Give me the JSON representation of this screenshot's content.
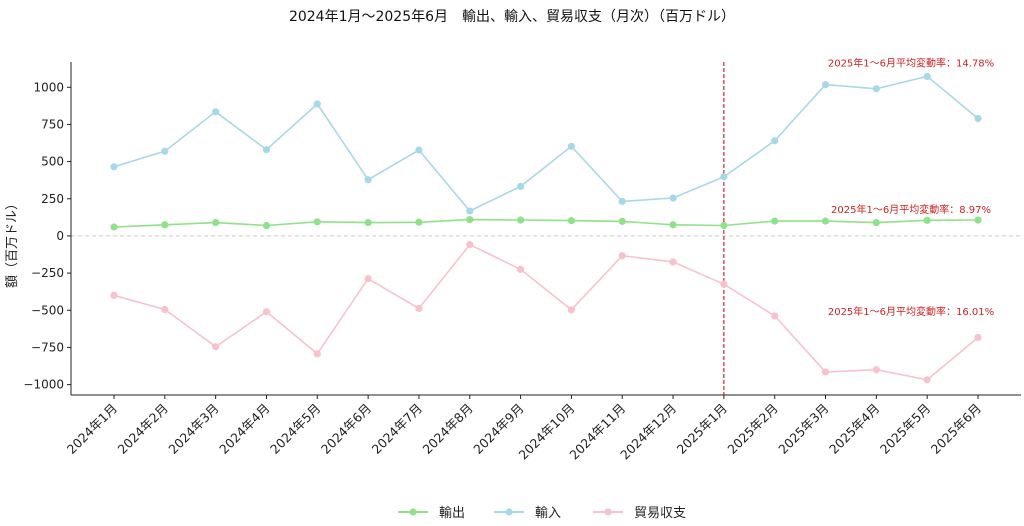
{
  "chart_data": {
    "type": "line",
    "title": "2024年1月～2025年6月　輸出、輸入、貿易収支（月次）（百万ドル）",
    "xlabel": "",
    "ylabel": "額（百万ドル）",
    "categories": [
      "2024年1月",
      "2024年2月",
      "2024年3月",
      "2024年4月",
      "2024年5月",
      "2024年6月",
      "2024年7月",
      "2024年8月",
      "2024年9月",
      "2024年10月",
      "2024年11月",
      "2024年12月",
      "2025年1月",
      "2025年2月",
      "2025年3月",
      "2025年4月",
      "2025年5月",
      "2025年6月"
    ],
    "ylim": [
      -1070,
      1170
    ],
    "yticks": [
      -1000,
      -750,
      -500,
      -250,
      0,
      250,
      500,
      750,
      1000
    ],
    "ytick_labels": [
      "−1000",
      "−750",
      "−500",
      "−250",
      "0",
      "250",
      "500",
      "750",
      "1000"
    ],
    "grid": false,
    "legend_position": "bottom-center",
    "series": [
      {
        "name": "輸出",
        "color": "#90e28a",
        "values": [
          60,
          75,
          90,
          70,
          95,
          90,
          92,
          110,
          107,
          103,
          98,
          75,
          70,
          100,
          100,
          90,
          105,
          107
        ]
      },
      {
        "name": "輸入",
        "color": "#a8d8e8",
        "values": [
          465,
          570,
          835,
          580,
          888,
          378,
          578,
          168,
          333,
          603,
          232,
          255,
          398,
          640,
          1018,
          990,
          1073,
          790
        ]
      },
      {
        "name": "貿易収支",
        "color": "#f8c2cd",
        "values": [
          -400,
          -495,
          -745,
          -510,
          -793,
          -288,
          -488,
          -58,
          -225,
          -497,
          -133,
          -175,
          -325,
          -538,
          -915,
          -900,
          -968,
          -683
        ]
      }
    ],
    "vline": {
      "at_category": "2025年1月",
      "color": "#cc0000",
      "style": "dashed"
    },
    "zero_line": {
      "value": 0,
      "color": "#cccccc",
      "style": "dashed"
    },
    "annotations": [
      {
        "text": "2025年1～6月平均変動率：14.78%",
        "series": "輸入",
        "y": 1165,
        "color": "#cc2222"
      },
      {
        "text": "2025年1～6月平均変動率：8.97%",
        "series": "輸出",
        "y": 180,
        "color": "#cc2222"
      },
      {
        "text": "2025年1～6月平均変動率：16.01%",
        "series": "貿易収支",
        "y": -505,
        "color": "#cc2222"
      }
    ]
  }
}
